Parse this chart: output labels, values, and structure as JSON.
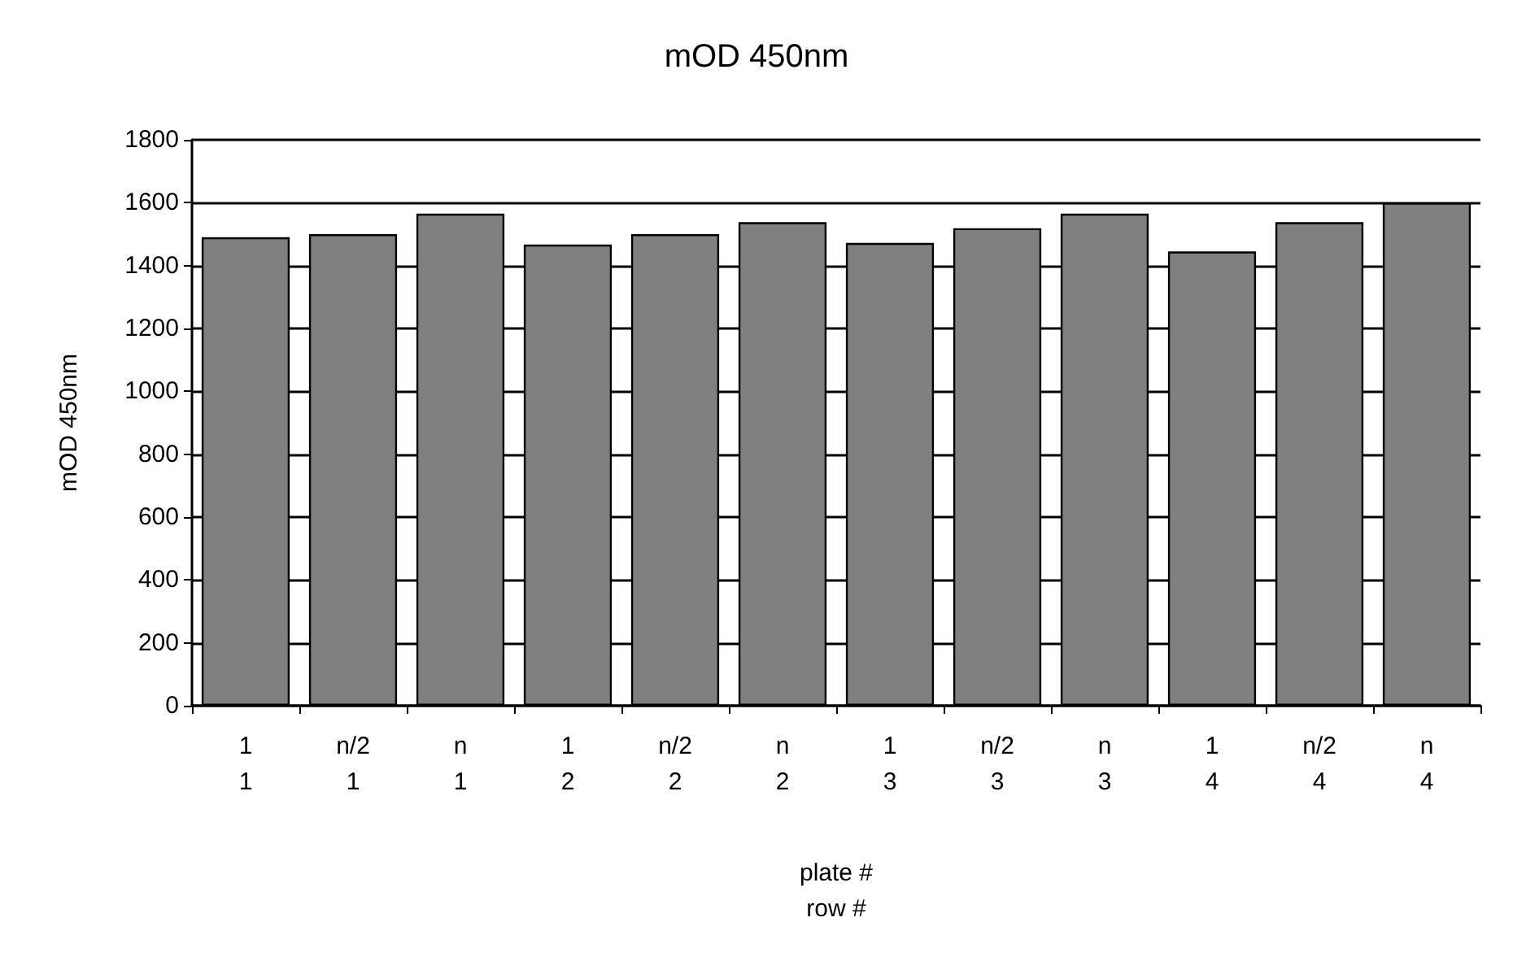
{
  "chart_data": {
    "type": "bar",
    "title": "mOD 450nm",
    "ylabel": "mOD 450nm",
    "xlabel": "plate #\nrow #",
    "categories": [
      "1\n1",
      "n/2\n1",
      "n\n1",
      "1\n2",
      "n/2\n2",
      "n\n2",
      "1\n3",
      "n/2\n3",
      "n\n3",
      "1\n4",
      "n/2\n4",
      "n\n4"
    ],
    "values": [
      1490,
      1500,
      1565,
      1467,
      1500,
      1538,
      1472,
      1519,
      1565,
      1445,
      1538,
      1600
    ],
    "color": "#808080",
    "ylim": [
      0,
      1800
    ],
    "yticks": [
      0,
      200,
      400,
      600,
      800,
      1000,
      1200,
      1400,
      1600,
      1800
    ],
    "grid": "y"
  }
}
